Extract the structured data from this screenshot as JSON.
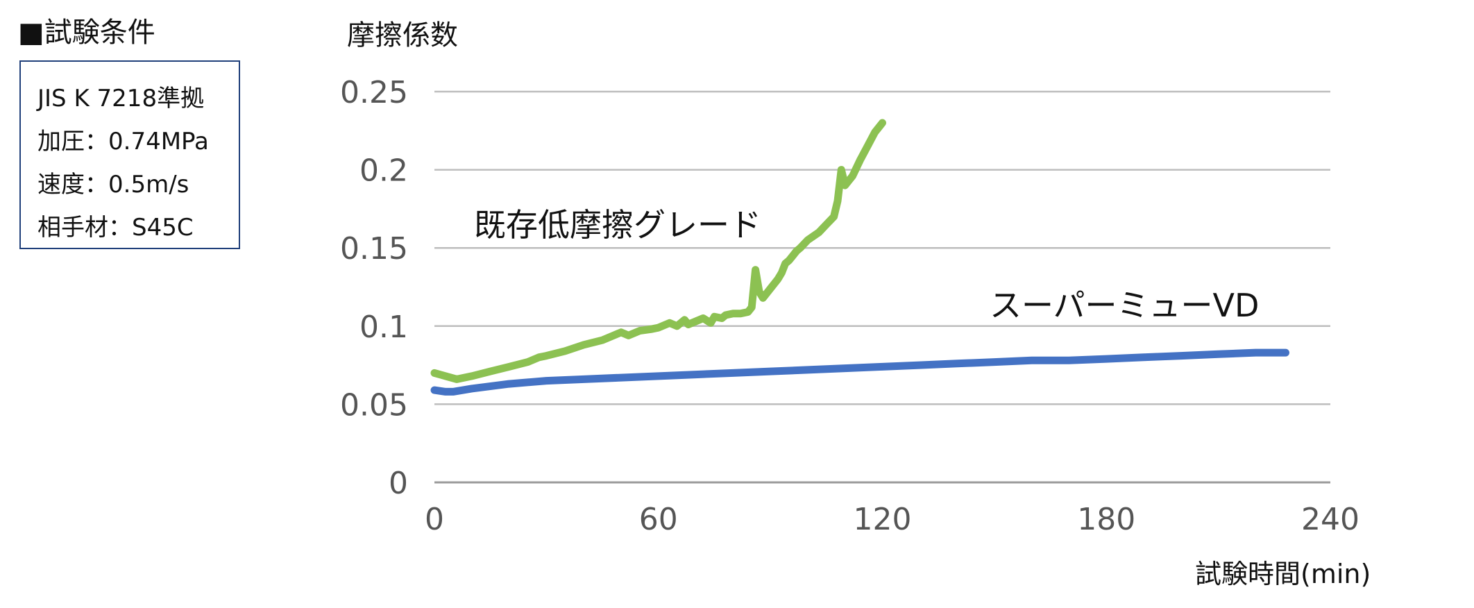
{
  "conditions": {
    "title": "■試験条件",
    "lines": [
      "JIS K 7218準拠",
      "加圧：0.74MPa",
      "速度：0.5m/s",
      "相手材：S45C"
    ]
  },
  "chart_data": {
    "type": "line",
    "ylabel": "摩擦係数",
    "xlabel": "試験時間(min)",
    "xlim": [
      0,
      240
    ],
    "ylim": [
      0,
      0.25
    ],
    "x_ticks": [
      "0",
      "60",
      "120",
      "180",
      "240"
    ],
    "y_ticks": [
      "0.25",
      "0.2",
      "0.15",
      "0.1",
      "0.05",
      "0"
    ],
    "grid": true,
    "series": [
      {
        "name": "既存低摩擦グレード",
        "color": "#8cc152",
        "x": [
          0,
          3,
          6,
          10,
          15,
          20,
          25,
          28,
          30,
          35,
          40,
          45,
          48,
          50,
          52,
          55,
          58,
          60,
          63,
          65,
          67,
          68,
          70,
          72,
          74,
          75,
          77,
          78,
          80,
          82,
          84,
          85,
          86,
          87,
          88,
          90,
          92,
          93,
          94,
          95,
          96,
          97,
          98,
          100,
          103,
          105,
          107,
          108,
          109,
          110,
          112,
          114,
          116,
          118,
          120
        ],
        "y": [
          0.07,
          0.068,
          0.066,
          0.068,
          0.071,
          0.074,
          0.077,
          0.08,
          0.081,
          0.084,
          0.088,
          0.091,
          0.094,
          0.096,
          0.094,
          0.097,
          0.098,
          0.099,
          0.102,
          0.1,
          0.104,
          0.101,
          0.103,
          0.105,
          0.102,
          0.106,
          0.105,
          0.107,
          0.108,
          0.108,
          0.109,
          0.112,
          0.136,
          0.122,
          0.118,
          0.124,
          0.13,
          0.134,
          0.14,
          0.142,
          0.145,
          0.148,
          0.15,
          0.155,
          0.16,
          0.165,
          0.17,
          0.18,
          0.2,
          0.19,
          0.196,
          0.206,
          0.215,
          0.224,
          0.23
        ]
      },
      {
        "name": "スーパーミューVD",
        "color": "#4472c4",
        "x": [
          0,
          3,
          5,
          10,
          20,
          30,
          40,
          50,
          60,
          70,
          80,
          90,
          100,
          110,
          120,
          130,
          140,
          150,
          160,
          170,
          180,
          190,
          200,
          210,
          220,
          228
        ],
        "y": [
          0.059,
          0.058,
          0.058,
          0.06,
          0.063,
          0.065,
          0.066,
          0.067,
          0.068,
          0.069,
          0.07,
          0.071,
          0.072,
          0.073,
          0.074,
          0.075,
          0.076,
          0.077,
          0.078,
          0.078,
          0.079,
          0.08,
          0.081,
          0.082,
          0.083,
          0.083
        ]
      }
    ]
  }
}
